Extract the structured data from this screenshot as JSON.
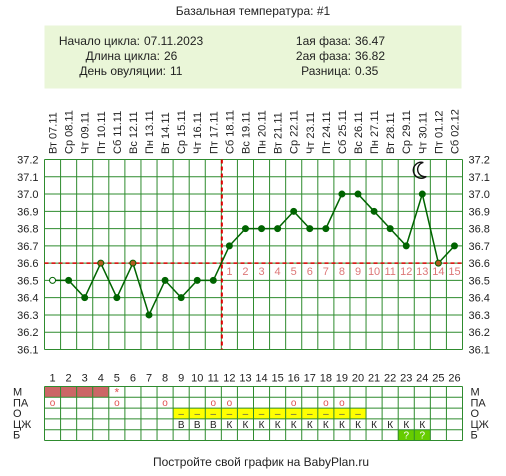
{
  "title": "Базальная температура: #1",
  "info": {
    "cycle_start_label": "Начало цикла:",
    "cycle_start": "07.11.2023",
    "cycle_length_label": "Длина цикла:",
    "cycle_length": "26",
    "ovulation_day_label": "День овуляции:",
    "ovulation_day": "11",
    "phase1_label": "1ая фаза:",
    "phase1": "36.47",
    "phase2_label": "2ая фаза:",
    "phase2": "36.82",
    "diff_label": "Разница:",
    "diff": "0.35"
  },
  "footer": "Постройте свой график на BabyPlan.ru",
  "colors": {
    "info_bg": "#eaf6d8",
    "line": "#006400",
    "marker": "#006400",
    "coverline": "#dd0000",
    "ovulation_line": "#dd0000",
    "phase2_numbers": "#dd7777",
    "menses": "#cc6666",
    "mucus_yellow": "#ffff00",
    "sex_green": "#66cc00",
    "grid": "#2e8b2e"
  },
  "moon_icon": "crescent-moon-icon",
  "chart_data": {
    "type": "line",
    "dates": [
      "Вт 07.11",
      "Ср 08.11",
      "Чт 09.11",
      "Пт 10.11",
      "Сб 11.11",
      "Вс 12.11",
      "Пн 13.11",
      "Вт 14.11",
      "Ср 15.11",
      "Чт 16.11",
      "Пт 17.11",
      "Сб 18.11",
      "Вс 19.11",
      "Пн 20.11",
      "Вт 21.11",
      "Ср 22.11",
      "Чт 23.11",
      "Пт 24.11",
      "Сб 25.11",
      "Вс 26.11",
      "Пн 27.11",
      "Вт 28.11",
      "Ср 29.11",
      "Чт 30.11",
      "Пт 01.12",
      "Сб 02.12"
    ],
    "days": [
      1,
      2,
      3,
      4,
      5,
      6,
      7,
      8,
      9,
      10,
      11,
      12,
      13,
      14,
      15,
      16,
      17,
      18,
      19,
      20,
      21,
      22,
      23,
      24,
      25,
      26
    ],
    "temperatures": [
      36.5,
      36.5,
      36.4,
      36.6,
      36.4,
      36.6,
      36.3,
      36.5,
      36.4,
      36.5,
      36.5,
      36.7,
      36.8,
      36.8,
      36.8,
      36.9,
      36.8,
      36.8,
      37.0,
      37.0,
      36.9,
      36.8,
      36.7,
      37.0,
      36.6,
      36.7
    ],
    "first_point_hollow": true,
    "ylim": [
      36.1,
      37.2
    ],
    "yticks": [
      "36.1",
      "36.2",
      "36.3",
      "36.4",
      "36.5",
      "36.6",
      "36.7",
      "36.8",
      "36.9",
      "37.0",
      "37.1",
      "37.2"
    ],
    "coverline": 36.6,
    "ovulation_day": 11,
    "phase2_day_numbers": [
      "1",
      "2",
      "3",
      "4",
      "5",
      "6",
      "7",
      "8",
      "9",
      "10",
      "11",
      "12",
      "13",
      "14",
      "15"
    ],
    "grid": true,
    "moon_day": 24,
    "rows": {
      "labels_left": [
        "М",
        "ПА",
        "О",
        "ЦЖ",
        "Б"
      ],
      "labels_right": [
        "М",
        "ПА",
        "О",
        "ЦЖ",
        "Б"
      ],
      "menses_days": [
        1,
        2,
        3,
        4
      ],
      "star_day": 5,
      "star": "*",
      "pa_mark": "o",
      "pa_days": [
        1,
        5,
        8,
        11,
        12,
        16,
        18,
        19
      ],
      "mucus_yellow_days": [
        9,
        10,
        11,
        12,
        13,
        14,
        15,
        16,
        17,
        18,
        19,
        20
      ],
      "mucus_dash": "–",
      "cervix_days": [
        9,
        10,
        11,
        12,
        13,
        14,
        15,
        16,
        17,
        18,
        19,
        20,
        21,
        22,
        23,
        24
      ],
      "cervix_values": [
        "В",
        "В",
        "В",
        "К",
        "К",
        "К",
        "К",
        "К",
        "К",
        "К",
        "К",
        "К",
        "К",
        "К",
        "К",
        "К"
      ],
      "test_days": [
        23,
        24
      ],
      "test_mark": "?"
    }
  }
}
